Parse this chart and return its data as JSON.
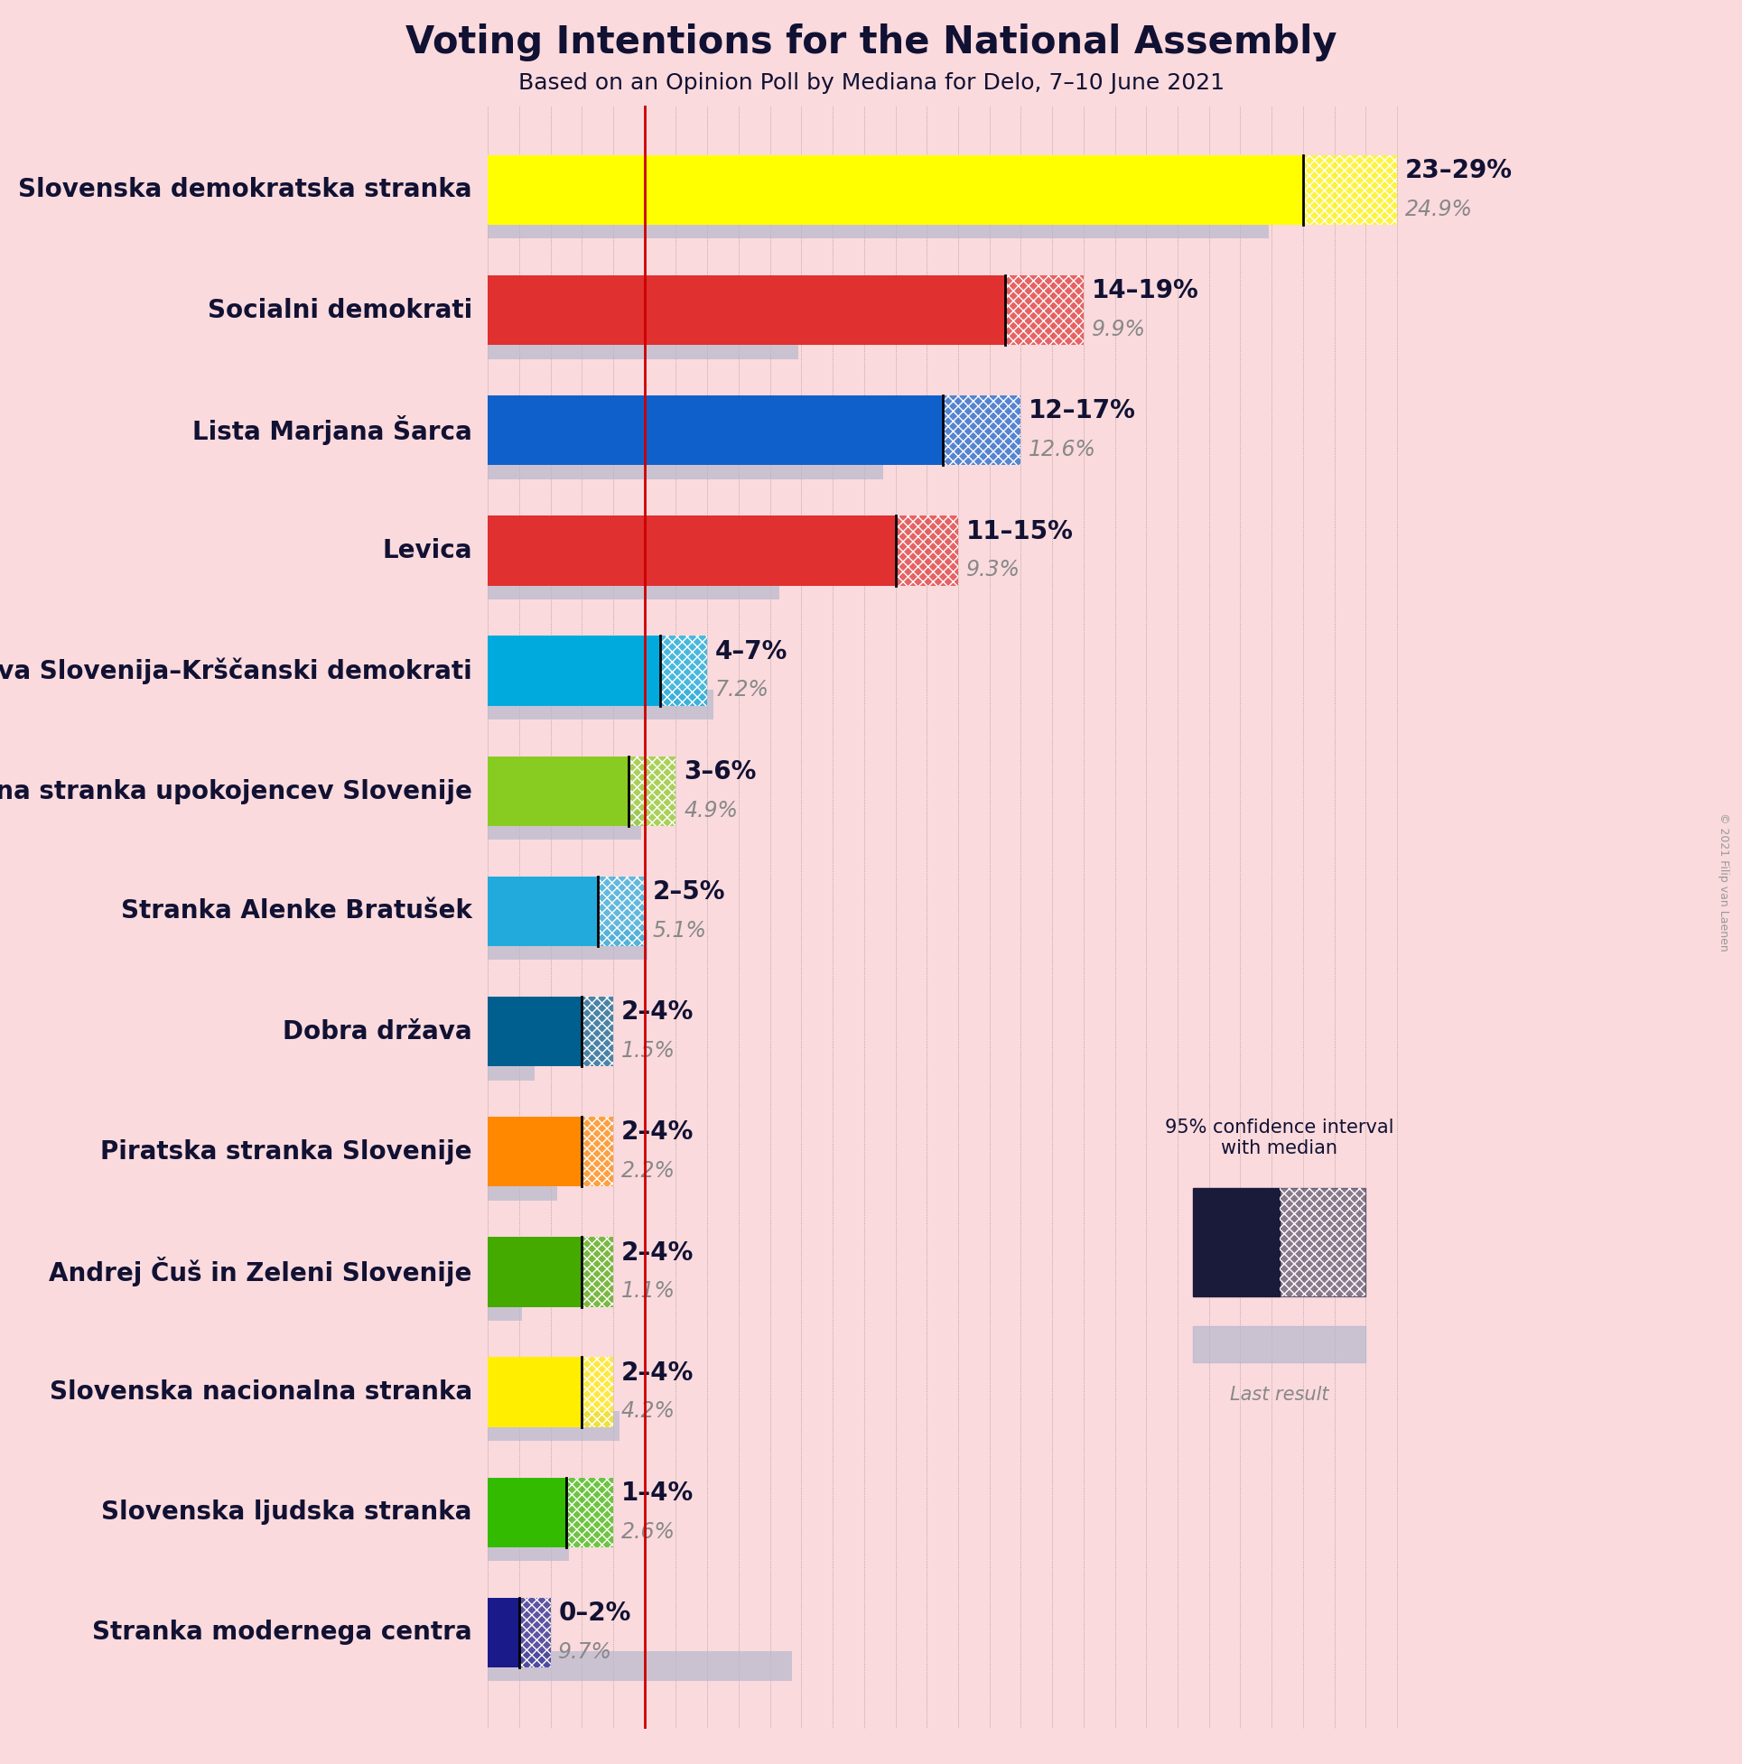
{
  "title": "Voting Intentions for the National Assembly",
  "subtitle": "Based on an Opinion Poll by Mediana for Delo, 7–10 June 2021",
  "background_color": "#fadadd",
  "parties": [
    {
      "name": "Slovenska demokratska stranka",
      "ci_low": 23,
      "ci_high": 29,
      "median": 26,
      "last_result": 24.9,
      "color": "#ffff00",
      "label": "23–29%",
      "last_label": "24.9%"
    },
    {
      "name": "Socialni demokrati",
      "ci_low": 14,
      "ci_high": 19,
      "median": 16.5,
      "last_result": 9.9,
      "color": "#e03030",
      "label": "14–19%",
      "last_label": "9.9%"
    },
    {
      "name": "Lista Marjana Šarca",
      "ci_low": 12,
      "ci_high": 17,
      "median": 14.5,
      "last_result": 12.6,
      "color": "#1060cc",
      "label": "12–17%",
      "last_label": "12.6%"
    },
    {
      "name": "Levica",
      "ci_low": 11,
      "ci_high": 15,
      "median": 13,
      "last_result": 9.3,
      "color": "#e03030",
      "label": "11–15%",
      "last_label": "9.3%"
    },
    {
      "name": "Nova Slovenija–Krščanski demokrati",
      "ci_low": 4,
      "ci_high": 7,
      "median": 5.5,
      "last_result": 7.2,
      "color": "#00aadd",
      "label": "4–7%",
      "last_label": "7.2%"
    },
    {
      "name": "Demokratična stranka upokojencev Slovenije",
      "ci_low": 3,
      "ci_high": 6,
      "median": 4.5,
      "last_result": 4.9,
      "color": "#88cc22",
      "label": "3–6%",
      "last_label": "4.9%"
    },
    {
      "name": "Stranka Alenke Bratušek",
      "ci_low": 2,
      "ci_high": 5,
      "median": 3.5,
      "last_result": 5.1,
      "color": "#22aadd",
      "label": "2–5%",
      "last_label": "5.1%"
    },
    {
      "name": "Dobra država",
      "ci_low": 2,
      "ci_high": 4,
      "median": 3,
      "last_result": 1.5,
      "color": "#005f8f",
      "label": "2–4%",
      "last_label": "1.5%"
    },
    {
      "name": "Piratska stranka Slovenije",
      "ci_low": 2,
      "ci_high": 4,
      "median": 3,
      "last_result": 2.2,
      "color": "#ff8800",
      "label": "2–4%",
      "last_label": "2.2%"
    },
    {
      "name": "Andrej Čuš in Zeleni Slovenije",
      "ci_low": 2,
      "ci_high": 4,
      "median": 3,
      "last_result": 1.1,
      "color": "#44aa00",
      "label": "2–4%",
      "last_label": "1.1%"
    },
    {
      "name": "Slovenska nacionalna stranka",
      "ci_low": 2,
      "ci_high": 4,
      "median": 3,
      "last_result": 4.2,
      "color": "#ffee00",
      "label": "2–4%",
      "last_label": "4.2%"
    },
    {
      "name": "Slovenska ljudska stranka",
      "ci_low": 1,
      "ci_high": 4,
      "median": 2.5,
      "last_result": 2.6,
      "color": "#33bb00",
      "label": "1–4%",
      "last_label": "2.6%"
    },
    {
      "name": "Stranka modernega centra",
      "ci_low": 0,
      "ci_high": 2,
      "median": 1,
      "last_result": 9.7,
      "color": "#1a1a8a",
      "label": "0–2%",
      "last_label": "9.7%"
    }
  ],
  "x_max": 30,
  "red_line_x": 5.0,
  "median_line_color": "#cc0000",
  "last_result_color": "#b8b8cc",
  "last_result_alpha": 0.7,
  "bar_height": 0.58,
  "last_bar_height": 0.25,
  "label_fontsize": 20,
  "name_fontsize": 20,
  "title_fontsize": 30,
  "subtitle_fontsize": 18,
  "text_color": "#111133",
  "gray_color": "#888888"
}
